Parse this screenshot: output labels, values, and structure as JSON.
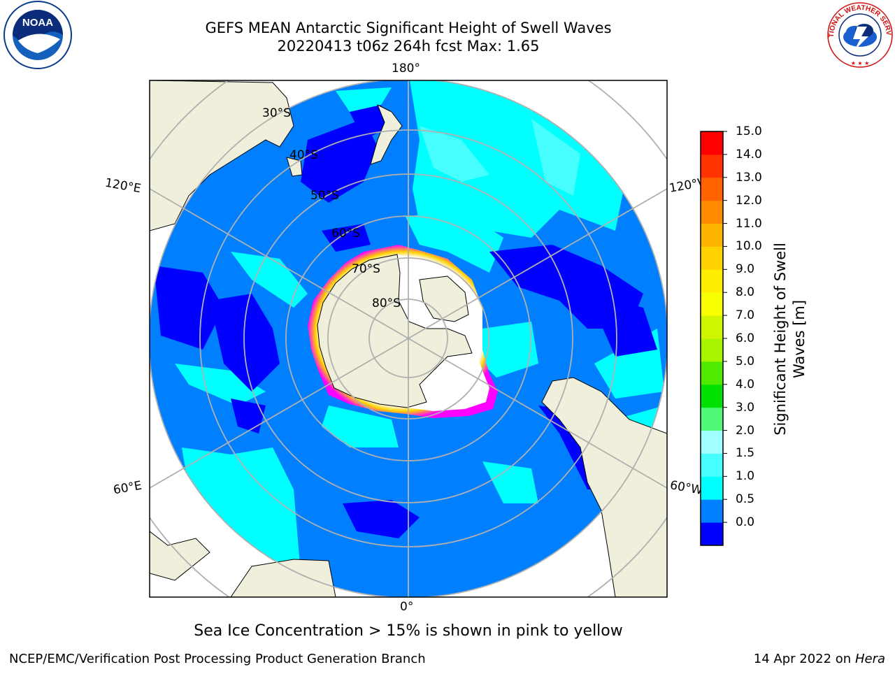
{
  "header": {
    "title_line1": "GEFS MEAN Antarctic Significant Height of Swell Waves",
    "title_line2": "20220413 t06z 264h fcst   Max: 1.65"
  },
  "logos": {
    "left": {
      "icon": "noaa-seal-icon",
      "text": "NOAA"
    },
    "right": {
      "icon": "nws-seal-icon",
      "text": "NATIONAL WEATHER SERVICE"
    }
  },
  "map": {
    "projection": "south-polar-stereographic",
    "longitude_labels": {
      "top": "180°",
      "bottom": "0°",
      "upper_left": "120°E",
      "lower_left": "60°E",
      "upper_right": "120°W",
      "lower_right": "60°W"
    },
    "latitude_labels": [
      "30°S",
      "40°S",
      "50°S",
      "60°S",
      "70°S",
      "80°S"
    ],
    "colors": {
      "land": "#efefdc",
      "ocean_0_0_5": "#0000ff",
      "ocean_0_5_1_0": "#0080ff",
      "ocean_1_0_1_5": "#00ffff",
      "grid": "#b0b0b0",
      "sea_ice": "#ff00ff",
      "sea_ice_high": "#ffd200"
    }
  },
  "colorbar": {
    "label_line1": "Significant Height of Swell",
    "label_line2": "Waves [m]",
    "ticks": [
      "15.0",
      "14.0",
      "13.0",
      "12.0",
      "11.0",
      "10.0",
      "9.0",
      "8.0",
      "7.0",
      "6.0",
      "5.0",
      "4.0",
      "3.0",
      "2.0",
      "1.5",
      "1.0",
      "0.5",
      "0.0"
    ],
    "colors_bottom_to_top": [
      "#0000ff",
      "#0080ff",
      "#00ffff",
      "#48ffff",
      "#a0ffff",
      "#50fa78",
      "#00e100",
      "#50ea00",
      "#a8f500",
      "#d0f500",
      "#f8ff00",
      "#ffee00",
      "#ffd200",
      "#ffb400",
      "#ff8c00",
      "#ff6400",
      "#ff3200",
      "#ff0000"
    ]
  },
  "footnote": "Sea Ice Concentration > 15% is shown in pink to yellow",
  "footer": {
    "left": "NCEP/EMC/Verification Post Processing Product Generation Branch",
    "right_date": "14 Apr 2022 on ",
    "right_host": "Hera"
  }
}
